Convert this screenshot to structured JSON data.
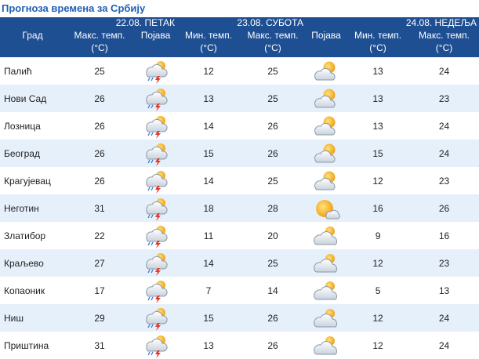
{
  "page_title": "Прогноза времена за Србију",
  "days": [
    {
      "date": "22.08. ПЕТАК"
    },
    {
      "date": "23.08. СУБОТА"
    },
    {
      "date": "24.08. НЕДЕЉА"
    }
  ],
  "headers": {
    "city": "Град",
    "max_temp": "Макс. темп.",
    "min_temp": "Мин. темп.",
    "unit": "(°C)",
    "phenomenon": "Појава"
  },
  "icons": {
    "storm": "thunderstorm-icon",
    "partly": "partly-cloudy-icon",
    "cloudy": "cloudy-icon",
    "sunny": "mostly-sunny-icon"
  },
  "colors": {
    "header_bg": "#1f4f93",
    "title": "#1f5fb5",
    "stripe": "#e6f0fb"
  },
  "rows": [
    {
      "city": "Палић",
      "d1_max": "25",
      "d1_icon": "storm",
      "d2_min": "12",
      "d2_max": "25",
      "d2_icon": "partly",
      "d3_min": "13",
      "d3_max": "24"
    },
    {
      "city": "Нови Сад",
      "d1_max": "26",
      "d1_icon": "storm",
      "d2_min": "13",
      "d2_max": "25",
      "d2_icon": "partly",
      "d3_min": "13",
      "d3_max": "23"
    },
    {
      "city": "Лозница",
      "d1_max": "26",
      "d1_icon": "storm",
      "d2_min": "14",
      "d2_max": "26",
      "d2_icon": "partly",
      "d3_min": "13",
      "d3_max": "24"
    },
    {
      "city": "Београд",
      "d1_max": "26",
      "d1_icon": "storm",
      "d2_min": "15",
      "d2_max": "26",
      "d2_icon": "partly",
      "d3_min": "15",
      "d3_max": "24"
    },
    {
      "city": "Крагујевац",
      "d1_max": "26",
      "d1_icon": "storm",
      "d2_min": "14",
      "d2_max": "25",
      "d2_icon": "partly",
      "d3_min": "12",
      "d3_max": "23"
    },
    {
      "city": "Неготин",
      "d1_max": "31",
      "d1_icon": "storm",
      "d2_min": "18",
      "d2_max": "28",
      "d2_icon": "sunny",
      "d3_min": "16",
      "d3_max": "26"
    },
    {
      "city": "Златибор",
      "d1_max": "22",
      "d1_icon": "storm",
      "d2_min": "11",
      "d2_max": "20",
      "d2_icon": "cloudy",
      "d3_min": "9",
      "d3_max": "16"
    },
    {
      "city": "Краљево",
      "d1_max": "27",
      "d1_icon": "storm",
      "d2_min": "14",
      "d2_max": "25",
      "d2_icon": "cloudy",
      "d3_min": "12",
      "d3_max": "23"
    },
    {
      "city": "Копаоник",
      "d1_max": "17",
      "d1_icon": "storm",
      "d2_min": "7",
      "d2_max": "14",
      "d2_icon": "cloudy",
      "d3_min": "5",
      "d3_max": "13"
    },
    {
      "city": "Ниш",
      "d1_max": "29",
      "d1_icon": "storm",
      "d2_min": "15",
      "d2_max": "26",
      "d2_icon": "cloudy",
      "d3_min": "12",
      "d3_max": "24"
    },
    {
      "city": "Приштина",
      "d1_max": "31",
      "d1_icon": "storm",
      "d2_min": "13",
      "d2_max": "26",
      "d2_icon": "cloudy",
      "d3_min": "12",
      "d3_max": "24"
    }
  ]
}
